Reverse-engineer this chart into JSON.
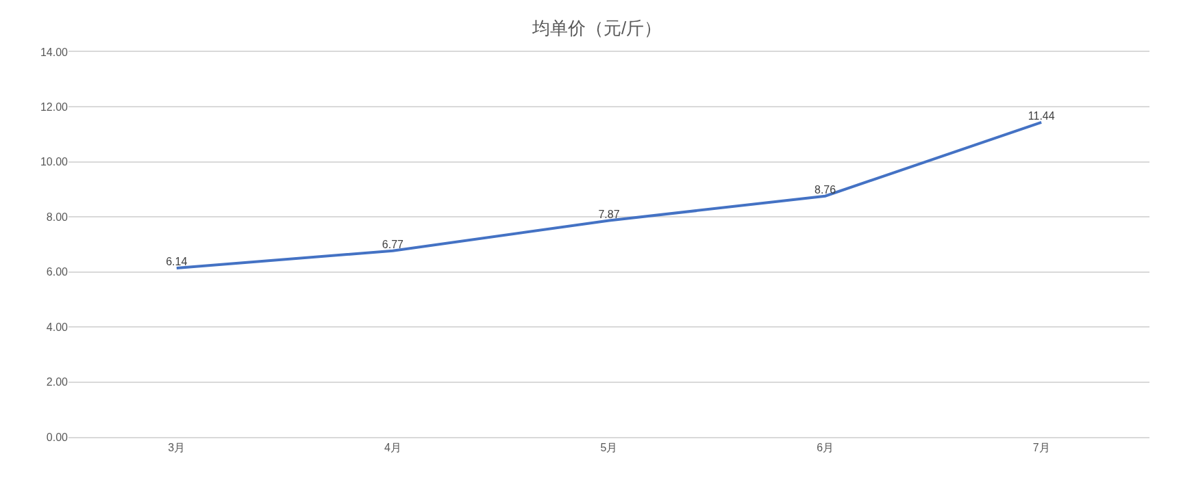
{
  "chart_data": {
    "type": "line",
    "title": "均单价（元/斤）",
    "categories": [
      "3月",
      "4月",
      "5月",
      "6月",
      "7月"
    ],
    "series": [
      {
        "color": "#4472c4",
        "values": [
          6.14,
          6.77,
          7.87,
          8.76,
          11.44
        ]
      }
    ],
    "ylim": [
      0,
      14
    ],
    "yticks": [
      {
        "value": 0,
        "label": "0.00"
      },
      {
        "value": 2,
        "label": "2.00"
      },
      {
        "value": 4,
        "label": "4.00"
      },
      {
        "value": 6,
        "label": "6.00"
      },
      {
        "value": 8,
        "label": "8.00"
      },
      {
        "value": 10,
        "label": "10.00"
      },
      {
        "value": 12,
        "label": "12.00"
      },
      {
        "value": 14,
        "label": "14.00"
      }
    ],
    "grid": "y",
    "data_labels": true,
    "marker": "none",
    "line_style": "solid"
  }
}
